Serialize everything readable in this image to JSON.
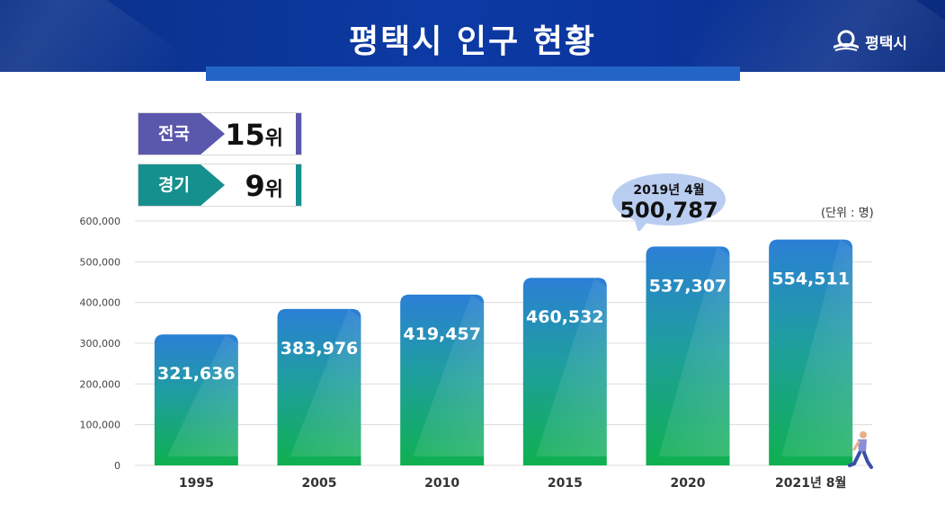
{
  "header": {
    "title": "평택시 인구 현황",
    "logo_text": "평택시"
  },
  "ranks": [
    {
      "label": "전국",
      "value": "15",
      "unit": "위",
      "color": "#5a58ad"
    },
    {
      "label": "경기",
      "value": "9",
      "unit": "위",
      "color": "#16908e"
    }
  ],
  "unit_note": "(단위 : 명)",
  "callout": {
    "date": "2019년 4월",
    "value": "500,787"
  },
  "chart_data": {
    "type": "bar",
    "categories": [
      "1995",
      "2005",
      "2010",
      "2015",
      "2020",
      "2021년 8월"
    ],
    "values": [
      321636,
      383976,
      419457,
      460532,
      537307,
      554511
    ],
    "value_labels": [
      "321,636",
      "383,976",
      "419,457",
      "460,532",
      "537,307",
      "554,511"
    ],
    "ylim": [
      0,
      600000
    ],
    "yticks": [
      0,
      100000,
      200000,
      300000,
      400000,
      500000,
      600000
    ],
    "ytick_labels": [
      "0",
      "100,000",
      "200,000",
      "300,000",
      "400,000",
      "500,000",
      "600,000"
    ],
    "grid": true,
    "bar_colors": {
      "top": "#2b7fd6",
      "bottom": "#0fb050"
    }
  }
}
